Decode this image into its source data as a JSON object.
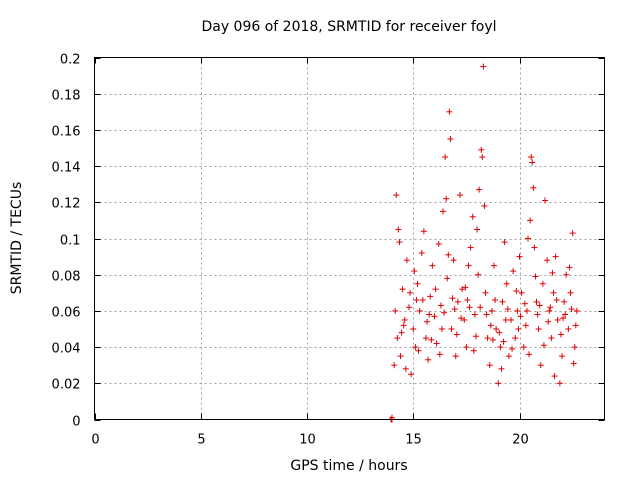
{
  "chart_data": {
    "type": "scatter",
    "title": "Day 096 of 2018, SRMTID for receiver foyl",
    "xlabel": "GPS time / hours",
    "ylabel": "SRMTID / TECUs",
    "xlim": [
      0,
      24
    ],
    "ylim": [
      0,
      0.2
    ],
    "x_ticks": [
      0,
      5,
      10,
      15,
      20
    ],
    "x_tick_labels": [
      "0",
      "5",
      "10",
      "15",
      "20"
    ],
    "y_ticks": [
      0,
      0.02,
      0.04,
      0.06,
      0.08,
      0.1,
      0.12,
      0.14,
      0.16,
      0.18,
      0.2
    ],
    "y_tick_labels": [
      "0",
      "0.02",
      "0.04",
      "0.06",
      "0.08",
      "0.1",
      "0.12",
      "0.14",
      "0.16",
      "0.18",
      "0.2"
    ],
    "grid": true,
    "series": [
      {
        "name": "SRMTID",
        "color": "#e00000",
        "marker": "+",
        "points": [
          [
            14.0,
            0.0
          ],
          [
            14.0,
            0.001
          ],
          [
            13.95,
            0.0
          ],
          [
            14.2,
            0.124
          ],
          [
            14.3,
            0.105
          ],
          [
            14.35,
            0.098
          ],
          [
            14.1,
            0.03
          ],
          [
            14.25,
            0.045
          ],
          [
            14.5,
            0.072
          ],
          [
            14.6,
            0.055
          ],
          [
            14.4,
            0.035
          ],
          [
            14.7,
            0.088
          ],
          [
            14.8,
            0.062
          ],
          [
            14.9,
            0.025
          ],
          [
            15.0,
            0.05
          ],
          [
            15.1,
            0.04
          ],
          [
            15.2,
            0.075
          ],
          [
            15.3,
            0.06
          ],
          [
            15.4,
            0.092
          ],
          [
            15.5,
            0.104
          ],
          [
            15.6,
            0.045
          ],
          [
            15.7,
            0.033
          ],
          [
            15.8,
            0.068
          ],
          [
            15.9,
            0.085
          ],
          [
            16.0,
            0.057
          ],
          [
            16.1,
            0.042
          ],
          [
            16.2,
            0.097
          ],
          [
            16.3,
            0.063
          ],
          [
            16.4,
            0.115
          ],
          [
            16.5,
            0.145
          ],
          [
            16.55,
            0.122
          ],
          [
            16.6,
            0.078
          ],
          [
            16.7,
            0.17
          ],
          [
            16.75,
            0.155
          ],
          [
            16.8,
            0.05
          ],
          [
            16.9,
            0.088
          ],
          [
            17.0,
            0.035
          ],
          [
            17.1,
            0.065
          ],
          [
            17.2,
            0.124
          ],
          [
            17.3,
            0.072
          ],
          [
            17.4,
            0.055
          ],
          [
            17.5,
            0.04
          ],
          [
            17.6,
            0.085
          ],
          [
            17.7,
            0.095
          ],
          [
            17.8,
            0.112
          ],
          [
            17.9,
            0.058
          ],
          [
            18.0,
            0.105
          ],
          [
            18.1,
            0.127
          ],
          [
            18.2,
            0.149
          ],
          [
            18.25,
            0.145
          ],
          [
            18.3,
            0.195
          ],
          [
            18.35,
            0.118
          ],
          [
            18.4,
            0.07
          ],
          [
            18.5,
            0.045
          ],
          [
            18.6,
            0.03
          ],
          [
            18.7,
            0.06
          ],
          [
            18.8,
            0.085
          ],
          [
            18.9,
            0.05
          ],
          [
            19.0,
            0.02
          ],
          [
            19.1,
            0.04
          ],
          [
            19.2,
            0.065
          ],
          [
            19.3,
            0.098
          ],
          [
            19.4,
            0.075
          ],
          [
            19.5,
            0.035
          ],
          [
            19.6,
            0.055
          ],
          [
            19.7,
            0.082
          ],
          [
            19.8,
            0.045
          ],
          [
            19.9,
            0.06
          ],
          [
            20.0,
            0.09
          ],
          [
            20.1,
            0.07
          ],
          [
            20.2,
            0.04
          ],
          [
            20.3,
            0.052
          ],
          [
            20.4,
            0.1
          ],
          [
            20.5,
            0.11
          ],
          [
            20.55,
            0.145
          ],
          [
            20.6,
            0.142
          ],
          [
            20.65,
            0.128
          ],
          [
            20.7,
            0.095
          ],
          [
            20.8,
            0.065
          ],
          [
            20.9,
            0.05
          ],
          [
            21.0,
            0.03
          ],
          [
            21.1,
            0.075
          ],
          [
            21.2,
            0.121
          ],
          [
            21.3,
            0.088
          ],
          [
            21.4,
            0.06
          ],
          [
            21.5,
            0.045
          ],
          [
            21.6,
            0.07
          ],
          [
            21.7,
            0.09
          ],
          [
            21.8,
            0.055
          ],
          [
            21.9,
            0.02
          ],
          [
            22.0,
            0.035
          ],
          [
            22.1,
            0.065
          ],
          [
            22.2,
            0.08
          ],
          [
            22.3,
            0.05
          ],
          [
            22.4,
            0.07
          ],
          [
            22.5,
            0.103
          ],
          [
            22.6,
            0.04
          ],
          [
            22.7,
            0.06
          ],
          [
            14.15,
            0.06
          ],
          [
            14.45,
            0.048
          ],
          [
            14.65,
            0.028
          ],
          [
            14.85,
            0.07
          ],
          [
            15.05,
            0.082
          ],
          [
            15.25,
            0.038
          ],
          [
            15.45,
            0.066
          ],
          [
            15.65,
            0.054
          ],
          [
            15.85,
            0.044
          ],
          [
            16.05,
            0.072
          ],
          [
            16.25,
            0.036
          ],
          [
            16.45,
            0.059
          ],
          [
            16.65,
            0.091
          ],
          [
            16.85,
            0.067
          ],
          [
            17.05,
            0.047
          ],
          [
            17.25,
            0.056
          ],
          [
            17.45,
            0.073
          ],
          [
            17.65,
            0.062
          ],
          [
            17.85,
            0.038
          ],
          [
            18.05,
            0.08
          ],
          [
            18.45,
            0.058
          ],
          [
            18.65,
            0.052
          ],
          [
            18.85,
            0.066
          ],
          [
            19.05,
            0.048
          ],
          [
            19.25,
            0.043
          ],
          [
            19.45,
            0.061
          ],
          [
            19.65,
            0.039
          ],
          [
            19.85,
            0.071
          ],
          [
            20.05,
            0.057
          ],
          [
            20.25,
            0.064
          ],
          [
            20.45,
            0.036
          ],
          [
            20.75,
            0.079
          ],
          [
            20.95,
            0.063
          ],
          [
            21.15,
            0.041
          ],
          [
            21.35,
            0.054
          ],
          [
            21.55,
            0.081
          ],
          [
            21.75,
            0.066
          ],
          [
            21.95,
            0.047
          ],
          [
            22.15,
            0.058
          ],
          [
            22.35,
            0.084
          ],
          [
            22.55,
            0.031
          ],
          [
            22.65,
            0.052
          ],
          [
            14.55,
            0.052
          ],
          [
            15.15,
            0.066
          ],
          [
            15.75,
            0.058
          ],
          [
            16.35,
            0.05
          ],
          [
            16.95,
            0.061
          ],
          [
            17.55,
            0.066
          ],
          [
            18.15,
            0.062
          ],
          [
            18.75,
            0.044
          ],
          [
            19.35,
            0.055
          ],
          [
            19.95,
            0.05
          ],
          [
            20.35,
            0.06
          ],
          [
            20.85,
            0.058
          ],
          [
            21.45,
            0.062
          ],
          [
            22.05,
            0.056
          ],
          [
            22.45,
            0.061
          ],
          [
            17.95,
            0.046
          ],
          [
            19.15,
            0.028
          ],
          [
            21.65,
            0.024
          ]
        ]
      }
    ]
  }
}
